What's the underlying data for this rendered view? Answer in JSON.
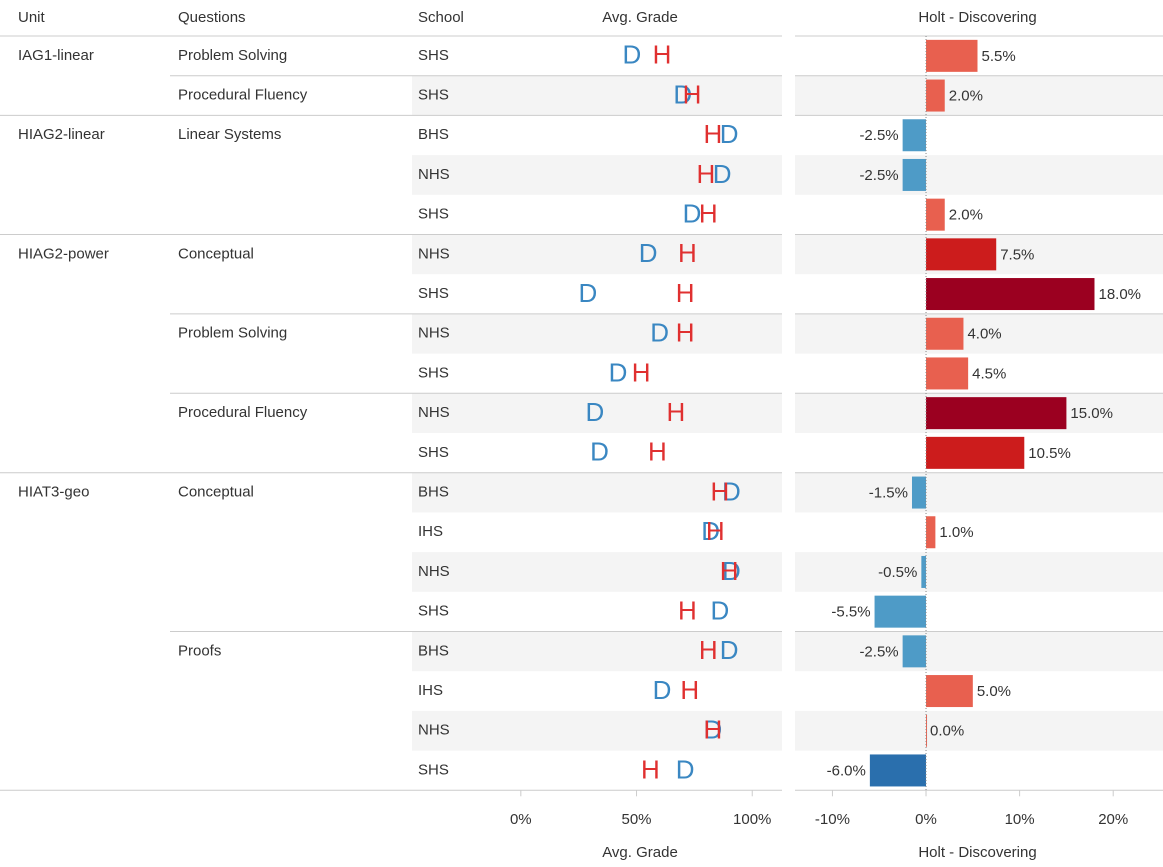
{
  "table": {
    "headers": [
      "Unit",
      "Questions",
      "School"
    ],
    "units": [
      "IAG1-linear",
      null,
      "HIAG2-linear",
      null,
      null,
      "HIAG2-power",
      null,
      null,
      null,
      null,
      null,
      "HIAT3-geo",
      null,
      null,
      null,
      null,
      null,
      null,
      null
    ],
    "questions": [
      "Problem Solving",
      "Procedural Fluency",
      "Linear Systems",
      null,
      null,
      "Conceptual",
      null,
      "Problem Solving",
      null,
      "Procedural Fluency",
      null,
      "Conceptual",
      null,
      null,
      null,
      "Proofs",
      null,
      null,
      null
    ],
    "schools": [
      "SHS",
      "SHS",
      "BHS",
      "NHS",
      "SHS",
      "NHS",
      "SHS",
      "NHS",
      "SHS",
      "NHS",
      "SHS",
      "BHS",
      "IHS",
      "NHS",
      "SHS",
      "BHS",
      "IHS",
      "NHS",
      "SHS"
    ]
  },
  "chart_data": [
    {
      "type": "dot",
      "title": "Avg. Grade",
      "xlabel": "Avg. Grade",
      "series": [
        {
          "name": "D",
          "color": "#3a87c2",
          "values": [
            48,
            70,
            90,
            87,
            74,
            55,
            29,
            60,
            42,
            32,
            34,
            91,
            82,
            91,
            86,
            90,
            61,
            83,
            71
          ]
        },
        {
          "name": "H",
          "color": "#e03030",
          "values": [
            61,
            74,
            83,
            80,
            81,
            72,
            71,
            71,
            52,
            67,
            59,
            86,
            84,
            90,
            72,
            81,
            73,
            83,
            56
          ]
        }
      ],
      "xlim": [
        -9,
        112
      ],
      "xticks": [
        {
          "value": 0,
          "label": "0%"
        },
        {
          "value": 50,
          "label": "50%"
        },
        {
          "value": 100,
          "label": "100%"
        }
      ]
    },
    {
      "type": "bar",
      "title": "Holt - Discovering",
      "xlabel": "Holt - Discovering",
      "values": [
        5.5,
        2.0,
        -2.5,
        -2.5,
        2.0,
        7.5,
        18.0,
        4.0,
        4.5,
        15.0,
        10.5,
        -1.5,
        1.0,
        -0.5,
        -5.5,
        -2.5,
        5.0,
        0.0,
        -6.0
      ],
      "value_labels": [
        "5.5%",
        "2.0%",
        "-2.5%",
        "-2.5%",
        "2.0%",
        "7.5%",
        "18.0%",
        "4.0%",
        "4.5%",
        "15.0%",
        "10.5%",
        "-1.5%",
        "1.0%",
        "-0.5%",
        "-5.5%",
        "-2.5%",
        "5.0%",
        "0.0%",
        "-6.0%"
      ],
      "colors": [
        "#e8604f",
        "#e8604f",
        "#4e9bc7",
        "#4e9bc7",
        "#e8604f",
        "#cc1c1c",
        "#9b0020",
        "#e8604f",
        "#e8604f",
        "#9b0020",
        "#cc1c1c",
        "#4e9bc7",
        "#e8604f",
        "#4e9bc7",
        "#4e9bc7",
        "#4e9bc7",
        "#e8604f",
        "#e8604f",
        "#2a6fad"
      ],
      "xlim": [
        -14,
        25
      ],
      "xticks": [
        {
          "value": -10,
          "label": "-10%"
        },
        {
          "value": 0,
          "label": "0%"
        },
        {
          "value": 10,
          "label": "10%"
        },
        {
          "value": 20,
          "label": "20%"
        }
      ]
    }
  ]
}
